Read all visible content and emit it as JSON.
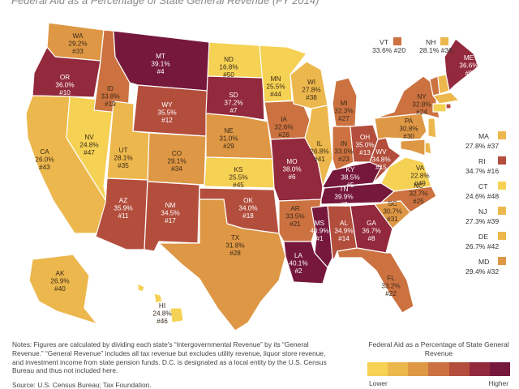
{
  "title": "Federal Aid as a Percentage of State General Revenue (FY 2014)",
  "colors": {
    "c1": "#f5d154",
    "c2": "#ecb74c",
    "c3": "#de9744",
    "c4": "#cc7240",
    "c5": "#b34e3d",
    "c6": "#93293c",
    "c7": "#76183c",
    "border": "#ffffff",
    "label_light": "#3a2a1a",
    "label_dark": "#ffffff"
  },
  "states": [
    {
      "abbr": "WA",
      "value": "29.2%",
      "rank": "#33"
    },
    {
      "abbr": "OR",
      "value": "36.0%",
      "rank": "#10"
    },
    {
      "abbr": "CA",
      "value": "26.0%",
      "rank": "#43"
    },
    {
      "abbr": "NV",
      "value": "24.8%",
      "rank": "#47"
    },
    {
      "abbr": "ID",
      "value": "33.8%",
      "rank": "#19"
    },
    {
      "abbr": "MT",
      "value": "39.1%",
      "rank": "#4"
    },
    {
      "abbr": "WY",
      "value": "35.5%",
      "rank": "#12"
    },
    {
      "abbr": "UT",
      "value": "28.1%",
      "rank": "#35"
    },
    {
      "abbr": "AZ",
      "value": "35.9%",
      "rank": "#11"
    },
    {
      "abbr": "CO",
      "value": "29.1%",
      "rank": "#34"
    },
    {
      "abbr": "NM",
      "value": "34.5%",
      "rank": "#17"
    },
    {
      "abbr": "ND",
      "value": "16.8%",
      "rank": "#50"
    },
    {
      "abbr": "SD",
      "value": "37.2%",
      "rank": "#7"
    },
    {
      "abbr": "NE",
      "value": "31.0%",
      "rank": "#29"
    },
    {
      "abbr": "KS",
      "value": "25.5%",
      "rank": "#45"
    },
    {
      "abbr": "OK",
      "value": "34.0%",
      "rank": "#18"
    },
    {
      "abbr": "TX",
      "value": "31.8%",
      "rank": "#28"
    },
    {
      "abbr": "MN",
      "value": "25.5%",
      "rank": "#44"
    },
    {
      "abbr": "IA",
      "value": "32.6%",
      "rank": "#26"
    },
    {
      "abbr": "MO",
      "value": "38.0%",
      "rank": "#6"
    },
    {
      "abbr": "AR",
      "value": "33.5%",
      "rank": "#21"
    },
    {
      "abbr": "LA",
      "value": "40.1%",
      "rank": "#2"
    },
    {
      "abbr": "WI",
      "value": "27.8%",
      "rank": "#38"
    },
    {
      "abbr": "IL",
      "value": "26.8%",
      "rank": "#41"
    },
    {
      "abbr": "MI",
      "value": "32.3%",
      "rank": "#27"
    },
    {
      "abbr": "IN",
      "value": "33.0%",
      "rank": "#23"
    },
    {
      "abbr": "OH",
      "value": "35.0%",
      "rank": "#13"
    },
    {
      "abbr": "KY",
      "value": "38.5%",
      "rank": "#5"
    },
    {
      "abbr": "TN",
      "value": "39.9%",
      "rank": "#3"
    },
    {
      "abbr": "MS",
      "value": "40.9%",
      "rank": "#1"
    },
    {
      "abbr": "AL",
      "value": "34.9%",
      "rank": "#14"
    },
    {
      "abbr": "GA",
      "value": "36.7%",
      "rank": "#8"
    },
    {
      "abbr": "FL",
      "value": "33.2%",
      "rank": "#22"
    },
    {
      "abbr": "SC",
      "value": "30.7%",
      "rank": "#31"
    },
    {
      "abbr": "NC",
      "value": "32.7%",
      "rank": "#25"
    },
    {
      "abbr": "VA",
      "value": "22.8%",
      "rank": "#49"
    },
    {
      "abbr": "WV",
      "value": "34.8%",
      "rank": "#15"
    },
    {
      "abbr": "PA",
      "value": "30.8%",
      "rank": "#30"
    },
    {
      "abbr": "NY",
      "value": "32.8%",
      "rank": "#24"
    },
    {
      "abbr": "ME",
      "value": "36.6%",
      "rank": "#9"
    },
    {
      "abbr": "AK",
      "value": "26.9%",
      "rank": "#40"
    },
    {
      "abbr": "HI",
      "value": "24.8%",
      "rank": "#46"
    }
  ],
  "northeast_keys": [
    {
      "abbr": "VT",
      "value": "33.6%",
      "rank": "#20"
    },
    {
      "abbr": "NH",
      "value": "28.1%",
      "rank": "#36"
    }
  ],
  "small_states": [
    {
      "abbr": "MA",
      "value": "27.8%",
      "rank": "#37"
    },
    {
      "abbr": "RI",
      "value": "34.7%",
      "rank": "#16"
    },
    {
      "abbr": "CT",
      "value": "24.6%",
      "rank": "#48"
    },
    {
      "abbr": "NJ",
      "value": "27.3%",
      "rank": "#39"
    },
    {
      "abbr": "DE",
      "value": "26.7%",
      "rank": "#42"
    },
    {
      "abbr": "MD",
      "value": "29.4%",
      "rank": "#32"
    }
  ],
  "notes": "Notes: Figures are calculated by dividing each state's “Intergovernmental Revenue” by its “General Revenue.” “General Revenue” includes all tax revenue but excludes utility revenue, liquor store revenue, and investment income from state pension funds. D.C. is designated as a local entity by the U.S. Census Bureau and thus not included here.",
  "source": "Source: U.S. Census Bureau; Tax Foundation.",
  "legend": {
    "title": "Federal Aid as a Percentage of State General Revenue",
    "low_label": "Lower",
    "high_label": "Higher"
  }
}
